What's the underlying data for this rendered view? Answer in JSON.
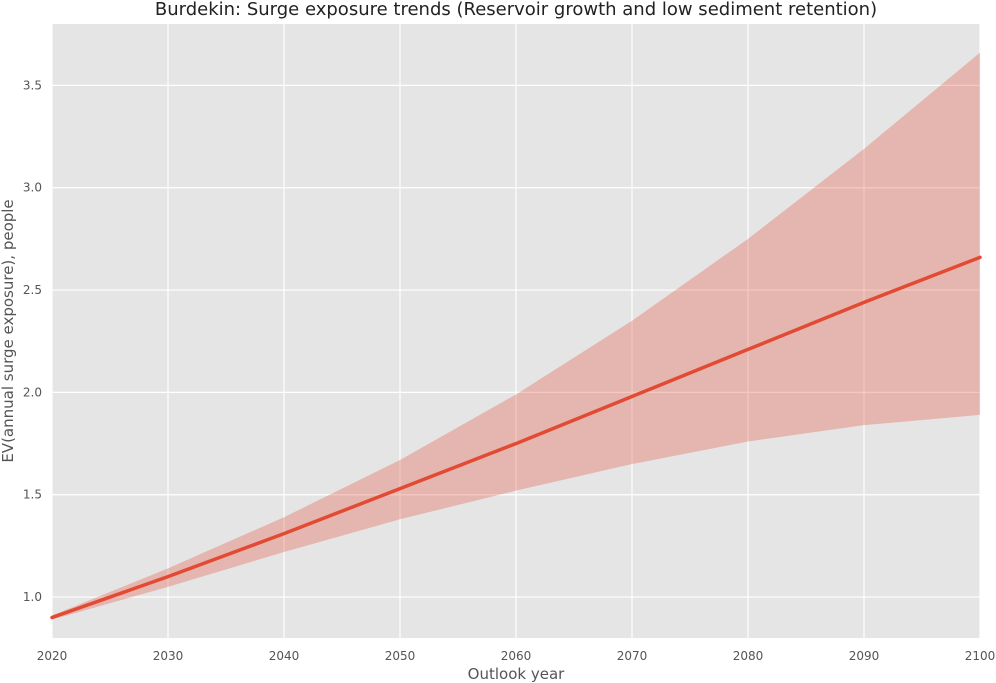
{
  "chart_data": {
    "type": "line",
    "title": "Burdekin: Surge exposure trends (Reservoir growth and low sediment retention)",
    "xlabel": "Outlook year",
    "ylabel": "EV(annual surge exposure), people",
    "xlim": [
      2020,
      2100
    ],
    "ylim": [
      0.8,
      3.8
    ],
    "xticks": [
      2020,
      2030,
      2040,
      2050,
      2060,
      2070,
      2080,
      2090,
      2100
    ],
    "yticks": [
      1.0,
      1.5,
      2.0,
      2.5,
      3.0,
      3.5
    ],
    "grid": true,
    "legend": "none",
    "x": [
      2020,
      2030,
      2040,
      2050,
      2060,
      2070,
      2080,
      2090,
      2100
    ],
    "series": [
      {
        "values": [
          0.9,
          1.1,
          1.31,
          1.53,
          1.75,
          1.98,
          2.21,
          2.44,
          2.66
        ],
        "lower": [
          0.89,
          1.05,
          1.22,
          1.38,
          1.52,
          1.65,
          1.76,
          1.84,
          1.89
        ],
        "upper": [
          0.91,
          1.14,
          1.39,
          1.67,
          1.99,
          2.35,
          2.75,
          3.19,
          3.66
        ],
        "color": "#e24a33",
        "band_color": "#e24a33"
      }
    ],
    "colors": {
      "plot_background": "#e5e5e5",
      "grid": "#ffffff"
    }
  }
}
